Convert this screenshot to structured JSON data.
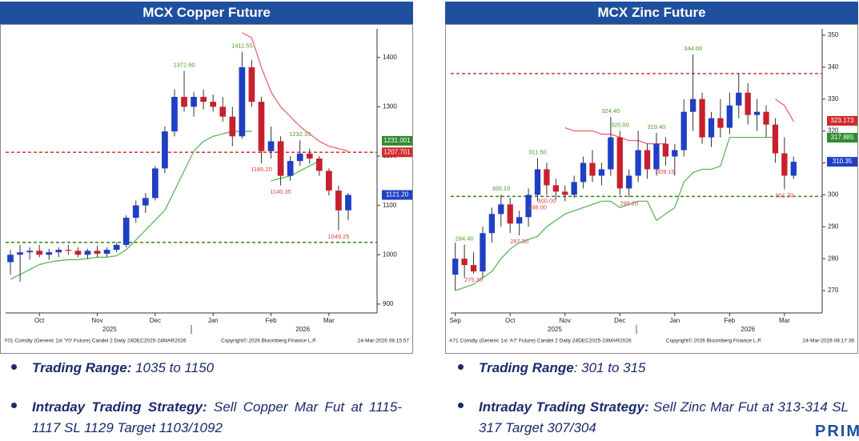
{
  "chart_data": [
    {
      "type": "candlestick",
      "title": "MCX Copper Future",
      "categories": [
        null,
        null,
        null,
        "Oct",
        null,
        null,
        null,
        null,
        null,
        "Nov",
        null,
        null,
        null,
        null,
        null,
        "Dec",
        null,
        null,
        null,
        null,
        null,
        "Jan",
        null,
        null,
        null,
        null,
        null,
        "Feb",
        null,
        null,
        null,
        null,
        null,
        "Mar",
        null,
        null
      ],
      "year_labels": [
        "2025",
        "2026"
      ],
      "open": [
        985,
        1000,
        1005,
        1008,
        1000,
        1005,
        1010,
        1008,
        1000,
        1008,
        1002,
        1010,
        1020,
        1075,
        1100,
        1115,
        1175,
        1250,
        1320,
        1300,
        1320,
        1310,
        1300,
        1280,
        1240,
        1380,
        1310,
        1210,
        1230,
        1160,
        1190,
        1205,
        1195,
        1170,
        1130,
        1090
      ],
      "high": [
        1010,
        1020,
        1015,
        1020,
        1012,
        1015,
        1020,
        1015,
        1012,
        1018,
        1015,
        1025,
        1080,
        1110,
        1125,
        1180,
        1260,
        1335,
        1372.6,
        1330,
        1335,
        1325,
        1320,
        1300,
        1411.55,
        1395,
        1320,
        1260,
        1240,
        1200,
        1232.1,
        1215,
        1200,
        1175,
        1140,
        1125
      ],
      "low": [
        960,
        945,
        990,
        995,
        990,
        995,
        1000,
        995,
        992,
        995,
        995,
        1005,
        1015,
        1065,
        1085,
        1110,
        1165,
        1240,
        1290,
        1280,
        1295,
        1290,
        1270,
        1220,
        1235,
        1300,
        1185.2,
        1195,
        1140.35,
        1150,
        1180,
        1185,
        1160,
        1120,
        1049.25,
        1070
      ],
      "close": [
        1000,
        1005,
        1008,
        1000,
        1005,
        1010,
        1008,
        1000,
        1008,
        1002,
        1010,
        1020,
        1075,
        1100,
        1115,
        1175,
        1250,
        1320,
        1300,
        1320,
        1310,
        1300,
        1280,
        1240,
        1380,
        1310,
        1210,
        1230,
        1160,
        1190,
        1205,
        1195,
        1170,
        1130,
        1090,
        1121.2
      ],
      "up_color": "#1f3fc4",
      "down_color": "#c8202c",
      "lines": [
        {
          "color": "#5cb85c",
          "values": [
            950,
            960,
            970,
            980,
            985,
            988,
            990,
            990,
            992,
            995,
            995,
            998,
            1010,
            1030,
            1050,
            1070,
            1090,
            1130,
            1170,
            1210,
            1230,
            1240,
            1245,
            1250,
            1250,
            1250,
            null,
            1150,
            1155,
            1160,
            1170,
            1180,
            1190,
            null,
            null,
            null
          ]
        },
        {
          "color": "#f06070",
          "values": [
            null,
            null,
            null,
            null,
            null,
            null,
            null,
            null,
            null,
            null,
            null,
            null,
            null,
            null,
            null,
            null,
            null,
            null,
            null,
            null,
            null,
            null,
            null,
            null,
            1450,
            1440,
            1380,
            1330,
            1300,
            1280,
            1260,
            1245,
            1230,
            1220,
            1215,
            1210
          ]
        }
      ],
      "levels": [
        {
          "value": 1025,
          "color": "#3a7d1a"
        },
        {
          "value": 1207.7,
          "color": "#e03030"
        }
      ],
      "price_tags": [
        {
          "value": 1231.001,
          "label": "1231.001",
          "color": "#2e8b2e"
        },
        {
          "value": 1207.701,
          "label": "1207.701",
          "color": "#d42a2a"
        },
        {
          "value": 1121.2,
          "label": "1121.20",
          "color": "#1f3fc4"
        }
      ],
      "annotations": [
        {
          "value": 1372.6,
          "label": "1372.60"
        },
        {
          "value": 1411.55,
          "label": "1411.55"
        },
        {
          "value": 1185.2,
          "label": "1185.20"
        },
        {
          "value": 1140.35,
          "label": "1140.35"
        },
        {
          "value": 1232.1,
          "label": "1232.10"
        },
        {
          "value": 1049.25,
          "label": "1049.25"
        }
      ],
      "ylim": [
        882,
        1458
      ],
      "yticks": [
        900,
        1000,
        1100,
        1200,
        1300,
        1400
      ],
      "source": "Y01 Comdty (Generic 1st 'Y0' Future) Candel 2 Daily 24DEC2025-24MAR2026",
      "copyright": "Copyright© 2026 Bloomberg Finance L.P.",
      "timestamp": "24-Mar-2026 08:15:57"
    },
    {
      "type": "candlestick",
      "title": "MCX Zinc Future",
      "categories": [
        "Sep",
        null,
        null,
        null,
        null,
        null,
        "Oct",
        null,
        null,
        null,
        null,
        null,
        "Nov",
        null,
        null,
        null,
        null,
        null,
        "Dec",
        null,
        null,
        null,
        null,
        null,
        "Jan",
        null,
        null,
        null,
        null,
        null,
        "Feb",
        null,
        null,
        null,
        null,
        null,
        "Mar",
        null
      ],
      "year_labels": [
        "2025",
        "2026"
      ],
      "open": [
        275,
        280,
        278,
        276,
        288,
        294,
        297,
        291,
        293,
        300,
        308,
        303,
        301,
        300,
        304,
        310,
        306,
        308,
        318,
        302,
        306,
        314,
        308,
        316,
        312,
        314,
        326,
        330,
        318,
        324,
        321,
        328,
        332,
        325,
        326,
        322,
        313,
        306
      ],
      "high": [
        285,
        284.4,
        282,
        290,
        296,
        300.1,
        299,
        295,
        302,
        311.5,
        310,
        305,
        303,
        306,
        312,
        314,
        310,
        324.4,
        320,
        308,
        320,
        316,
        319.4,
        318,
        316,
        330,
        344,
        332,
        326,
        330,
        332,
        338,
        335,
        330,
        328,
        324,
        318,
        312
      ],
      "low": [
        270,
        274,
        275.3,
        274,
        285,
        290,
        288,
        287.3,
        290,
        298,
        300,
        298.5,
        298,
        299,
        302,
        304,
        303,
        306,
        300,
        299.2,
        304,
        305,
        306,
        309.15,
        306,
        312,
        320,
        316,
        315,
        318,
        319,
        324,
        322,
        320,
        318,
        310,
        301.7,
        305
      ],
      "close": [
        280,
        278,
        276,
        288,
        294,
        297,
        291,
        293,
        300,
        308,
        303,
        301,
        300,
        304,
        310,
        306,
        308,
        318,
        302,
        306,
        314,
        308,
        316,
        312,
        314,
        326,
        330,
        318,
        324,
        321,
        328,
        332,
        325,
        326,
        322,
        313,
        306,
        310.35
      ],
      "up_color": "#1f3fc4",
      "down_color": "#c8202c",
      "lines": [
        {
          "color": "#5cb85c",
          "values": [
            270,
            271,
            272,
            274,
            276,
            280,
            283,
            285,
            286,
            287,
            290,
            292,
            294,
            295,
            296,
            297,
            298,
            298,
            296,
            297,
            298,
            298,
            292,
            294,
            296,
            304,
            307,
            308,
            308,
            309,
            318,
            318,
            318,
            318,
            318,
            318,
            null,
            null
          ]
        },
        {
          "color": "#f06070",
          "values": [
            null,
            null,
            null,
            null,
            null,
            null,
            null,
            null,
            null,
            null,
            null,
            null,
            321,
            320,
            320,
            320,
            319,
            319,
            318,
            317,
            317,
            316,
            316,
            316,
            null,
            null,
            null,
            null,
            null,
            null,
            null,
            null,
            null,
            null,
            null,
            330,
            328,
            323
          ]
        }
      ],
      "levels": [
        {
          "value": 299.5,
          "color": "#3a7d1a"
        },
        {
          "value": 338,
          "color": "#e03030"
        }
      ],
      "price_tags": [
        {
          "value": 323.173,
          "label": "323.173",
          "color": "#d42a2a"
        },
        {
          "value": 317.885,
          "label": "317.885",
          "color": "#2e8b2e"
        },
        {
          "value": 310.35,
          "label": "310.35",
          "color": "#1f3fc4"
        }
      ],
      "annotations": [
        {
          "value": 284.4,
          "label": "284.40"
        },
        {
          "value": 275.3,
          "label": "275.30"
        },
        {
          "value": 300.1,
          "label": "300.10"
        },
        {
          "value": 287.3,
          "label": "287.30"
        },
        {
          "value": 311.5,
          "label": "311.50"
        },
        {
          "value": 298,
          "label": "298.00"
        },
        {
          "value": 324.4,
          "label": "324.40"
        },
        {
          "value": 300,
          "label": "300.00"
        },
        {
          "value": 299.2,
          "label": "299.20"
        },
        {
          "value": 320,
          "label": "320.00"
        },
        {
          "value": 319.4,
          "label": "319.40"
        },
        {
          "value": 309.15,
          "label": "309.15"
        },
        {
          "value": 344,
          "label": "344.00"
        },
        {
          "value": 301.7,
          "label": "301.70"
        }
      ],
      "ylim": [
        263,
        352
      ],
      "yticks": [
        270,
        280,
        290,
        300,
        310,
        320,
        330,
        340,
        350
      ],
      "source": "A71 Comdty (Generic 1st 'A7' Future) Candel 2 Daily 24DEC2025-24MAR2026",
      "copyright": "Copyright© 2026 Bloomberg Finance L.P.",
      "timestamp": "24-Mar-2026 08:17:36"
    }
  ],
  "notes": [
    [
      {
        "label": "Trading Range:",
        "text": " 1035 to 1150"
      },
      {
        "label": "Intraday Trading Strategy:",
        "text": " Sell Copper Mar Fut at 1115-1117 SL 1129  Target 1103/1092"
      }
    ],
    [
      {
        "label": "Trading Range",
        "text": ": 301 to 315"
      },
      {
        "label": "Intraday Trading Strategy:",
        "text": " Sell Zinc Mar Fut at 313-314 SL 317 Target 307/304"
      }
    ]
  ],
  "logo": "PRIM"
}
